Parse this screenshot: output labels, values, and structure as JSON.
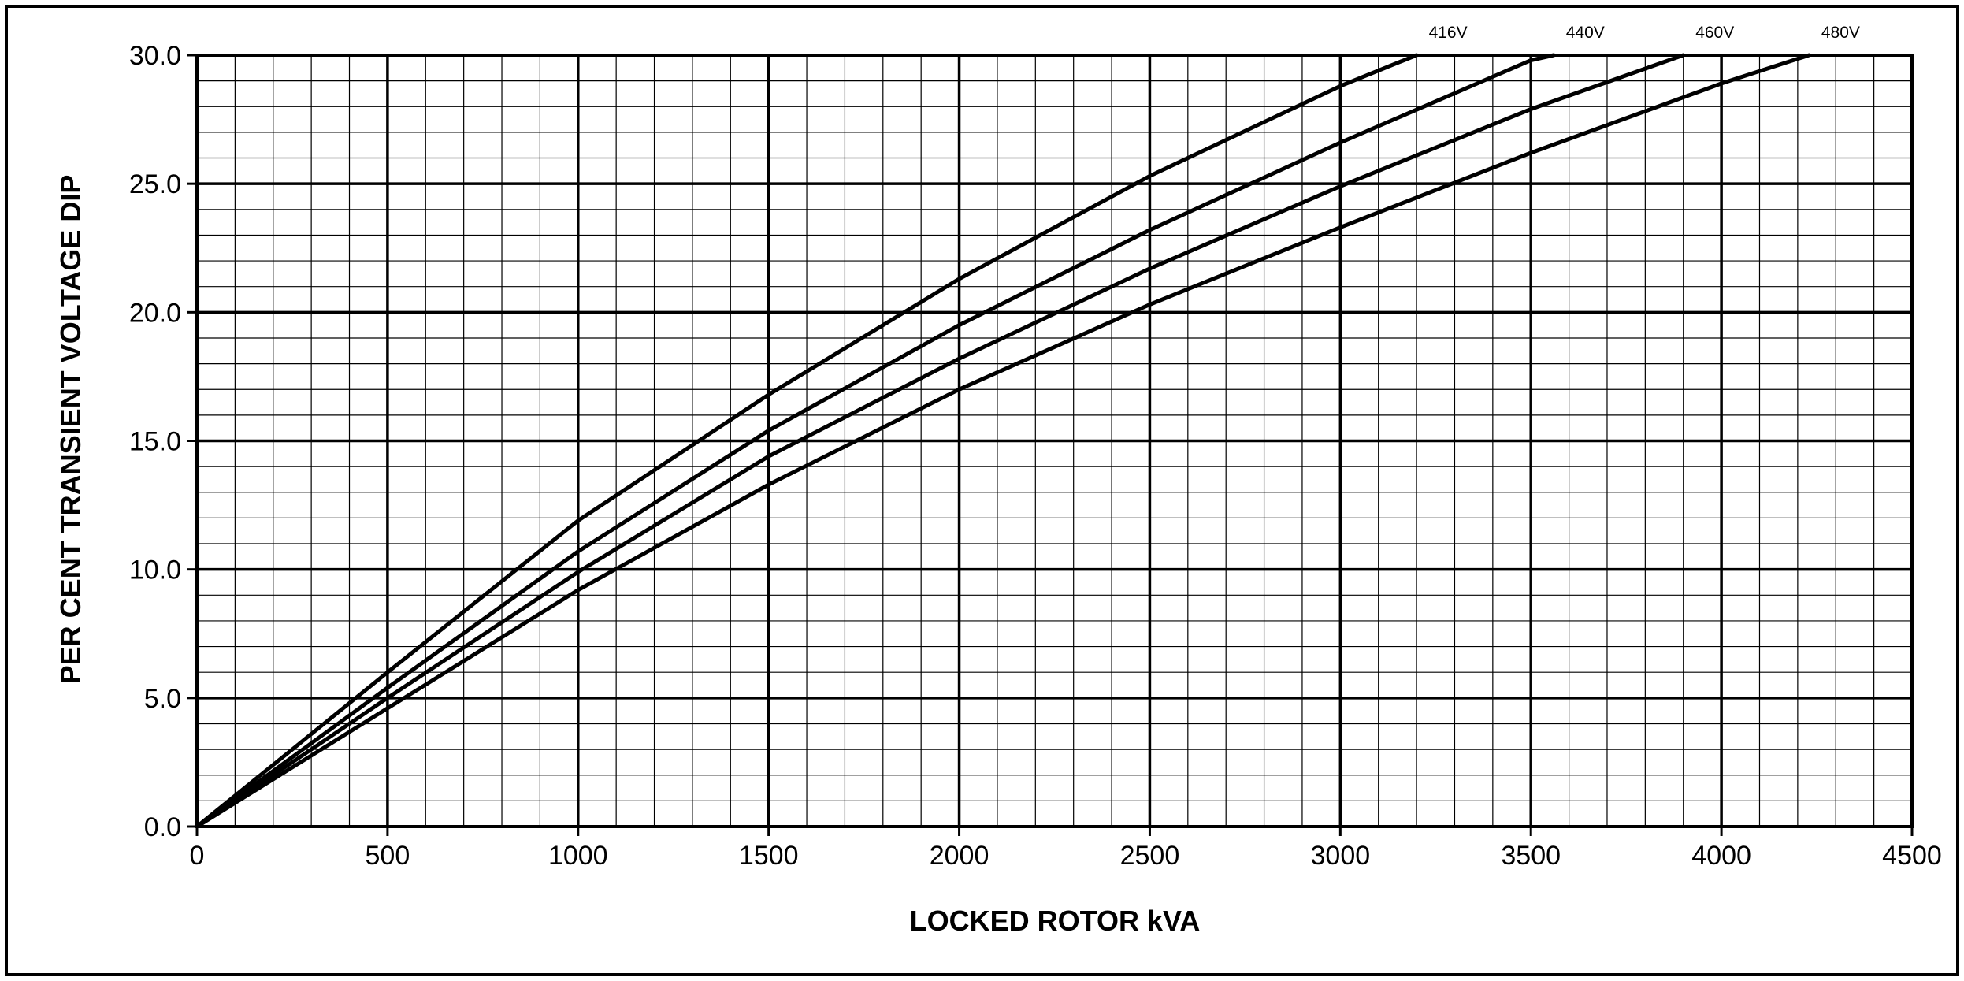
{
  "chart_data": {
    "type": "line",
    "title": "",
    "xlabel": "LOCKED ROTOR kVA",
    "ylabel": "PER CENT TRANSIENT VOLTAGE DIP",
    "xlim": [
      0,
      4500
    ],
    "ylim": [
      0,
      30
    ],
    "x_ticks": [
      0,
      500,
      1000,
      1500,
      2000,
      2500,
      3000,
      3500,
      4000,
      4500
    ],
    "x_tick_labels": [
      "0",
      "500",
      "1000",
      "1500",
      "2000",
      "2500",
      "3000",
      "3500",
      "4000",
      "4500"
    ],
    "y_ticks": [
      0,
      5,
      10,
      15,
      20,
      25,
      30
    ],
    "y_tick_labels": [
      "0.0",
      "5.0",
      "10.0",
      "15.0",
      "20.0",
      "25.0",
      "30.0"
    ],
    "grid": {
      "major": true,
      "minor": true,
      "x_minor_step": 100,
      "y_minor_step": 1
    },
    "legend": "labels at line ends, top",
    "colors": {
      "line": "#000000",
      "grid": "#000000",
      "background": "#ffffff"
    },
    "series": [
      {
        "name": "416V",
        "x": [
          0,
          500,
          1000,
          1500,
          2000,
          2500,
          3000,
          3200
        ],
        "y": [
          0,
          6.0,
          11.9,
          16.8,
          21.3,
          25.3,
          28.8,
          30.0
        ]
      },
      {
        "name": "440V",
        "x": [
          0,
          500,
          1000,
          1500,
          2000,
          2500,
          3000,
          3500,
          3560
        ],
        "y": [
          0,
          5.4,
          10.7,
          15.4,
          19.5,
          23.2,
          26.6,
          29.8,
          30.0
        ]
      },
      {
        "name": "460V",
        "x": [
          0,
          500,
          1000,
          1500,
          2000,
          2500,
          3000,
          3500,
          3900
        ],
        "y": [
          0,
          5.0,
          9.9,
          14.4,
          18.2,
          21.7,
          24.9,
          27.9,
          30.0
        ]
      },
      {
        "name": "480V",
        "x": [
          0,
          500,
          1000,
          1500,
          2000,
          2500,
          3000,
          3500,
          4000,
          4230
        ],
        "y": [
          0,
          4.6,
          9.2,
          13.3,
          17.0,
          20.3,
          23.3,
          26.2,
          28.9,
          30.0
        ]
      }
    ]
  }
}
